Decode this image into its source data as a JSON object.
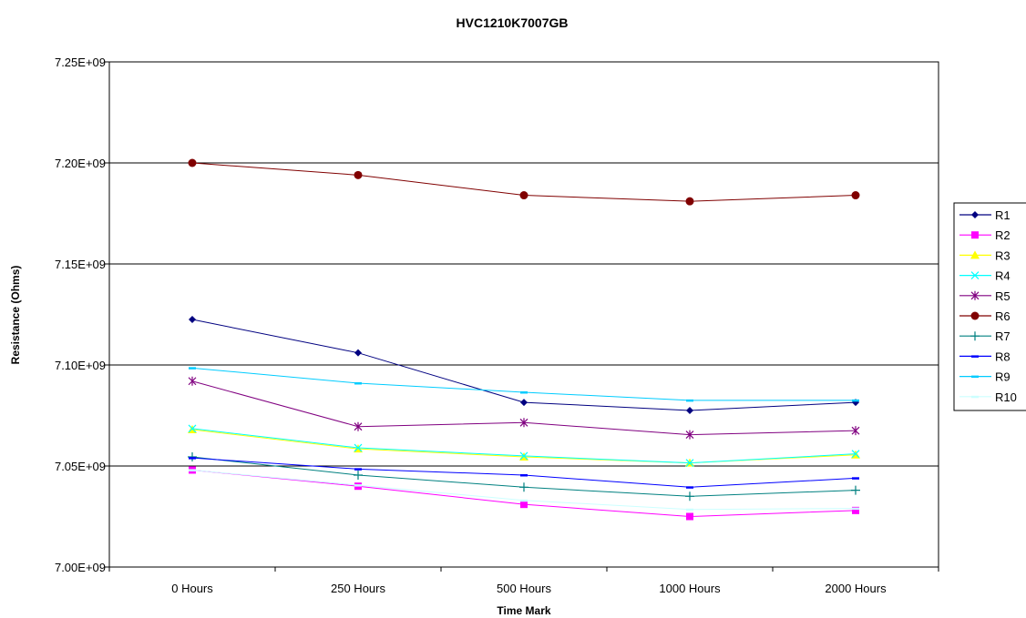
{
  "chart_data": {
    "type": "line",
    "title": "HVC1210K7007GB",
    "xlabel": "Time Mark",
    "ylabel": "Resistance (Ohms)",
    "categories": [
      "0  Hours",
      "250  Hours",
      "500  Hours",
      "1000 Hours",
      "2000 Hours"
    ],
    "ylim": [
      7000000000.0,
      7250000000.0
    ],
    "yticks": [
      7000000000.0,
      7050000000.0,
      7100000000.0,
      7150000000.0,
      7200000000.0,
      7250000000.0
    ],
    "ytick_labels": [
      "7.00E+09",
      "7.05E+09",
      "7.10E+09",
      "7.15E+09",
      "7.20E+09",
      "7.25E+09"
    ],
    "grid": "horizontal major gridlines",
    "legend_position": "right",
    "series": [
      {
        "name": "R1",
        "color": "#000080",
        "marker": "diamond",
        "values": [
          7122500000.0,
          7106000000.0,
          7081500000.0,
          7077500000.0,
          7081500000.0
        ]
      },
      {
        "name": "R2",
        "color": "#FF00FF",
        "marker": "square",
        "values": [
          7048000000.0,
          7040000000.0,
          7031000000.0,
          7025000000.0,
          7028000000.0
        ]
      },
      {
        "name": "R3",
        "color": "#FFFF00",
        "marker": "triangle",
        "values": [
          7068000000.0,
          7058500000.0,
          7054500000.0,
          7051500000.0,
          7055500000.0
        ]
      },
      {
        "name": "R4",
        "color": "#00FFFF",
        "marker": "x",
        "values": [
          7068500000.0,
          7059000000.0,
          7055000000.0,
          7051500000.0,
          7056000000.0
        ]
      },
      {
        "name": "R5",
        "color": "#800080",
        "marker": "star",
        "values": [
          7092000000.0,
          7069500000.0,
          7071500000.0,
          7065500000.0,
          7067500000.0
        ]
      },
      {
        "name": "R6",
        "color": "#800000",
        "marker": "circle",
        "values": [
          7200000000.0,
          7194000000.0,
          7184000000.0,
          7181000000.0,
          7184000000.0
        ]
      },
      {
        "name": "R7",
        "color": "#008080",
        "marker": "plus",
        "values": [
          7054500000.0,
          7045500000.0,
          7039500000.0,
          7035000000.0,
          7038000000.0
        ]
      },
      {
        "name": "R8",
        "color": "#0000FF",
        "marker": "dash",
        "values": [
          7054000000.0,
          7048500000.0,
          7045500000.0,
          7039500000.0,
          7044000000.0
        ]
      },
      {
        "name": "R9",
        "color": "#00CCFF",
        "marker": "dash",
        "values": [
          7098500000.0,
          7091000000.0,
          7086500000.0,
          7082500000.0,
          7082500000.0
        ]
      },
      {
        "name": "R10",
        "color": "#CCFFFF",
        "marker": "dash",
        "values": [
          7048000000.0,
          7040500000.0,
          7033000000.0,
          7028500000.0,
          7029000000.0
        ]
      }
    ]
  }
}
